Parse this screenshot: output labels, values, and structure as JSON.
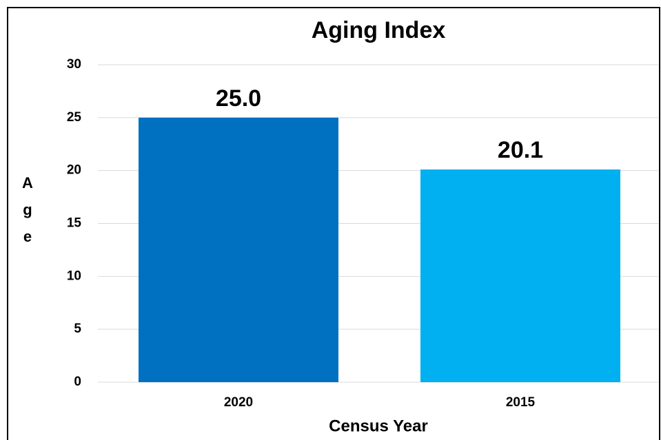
{
  "chart_data": {
    "type": "bar",
    "title": "Aging Index",
    "categories": [
      "2020",
      "2015"
    ],
    "values": [
      25,
      20.1
    ],
    "value_labels": [
      "25.0",
      "20.1"
    ],
    "colors": [
      "#0070c0",
      "#00b0f0"
    ],
    "x_label": "Census Year",
    "y_label": "Age",
    "ylim": [
      0,
      30
    ],
    "yticks": [
      0,
      5,
      10,
      15,
      20,
      25,
      30
    ],
    "grid": true
  }
}
